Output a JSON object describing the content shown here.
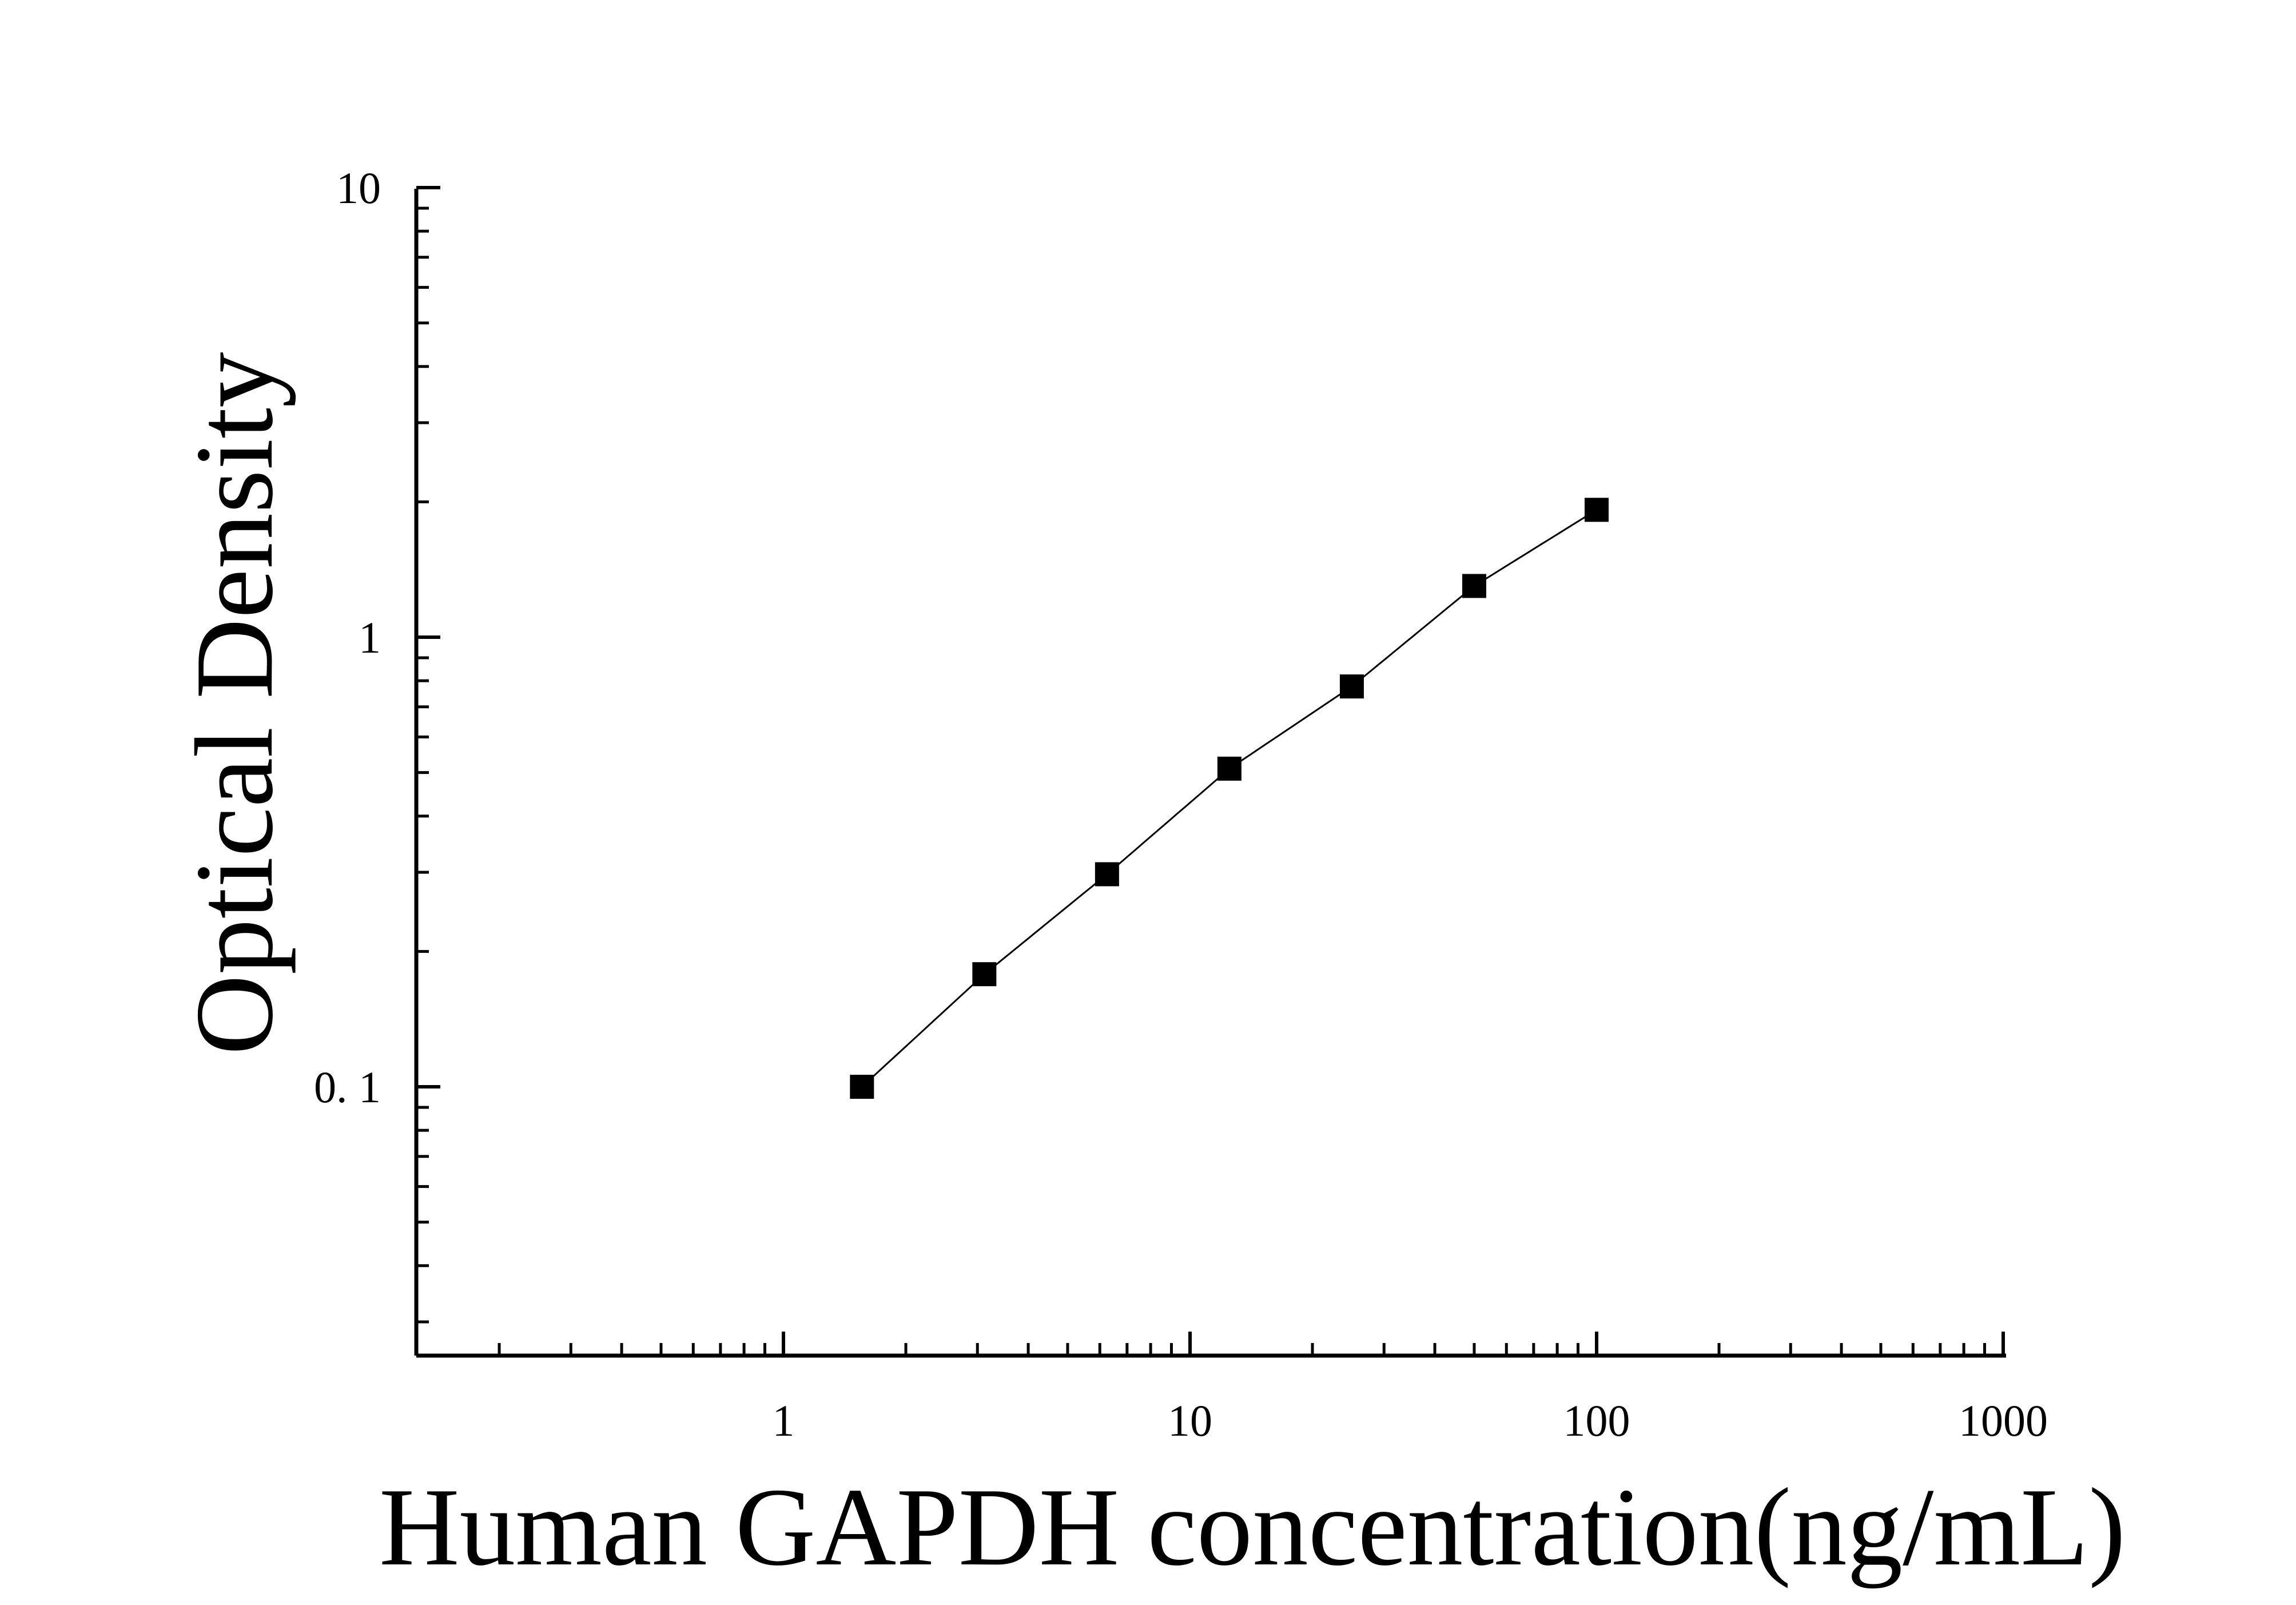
{
  "chart_data": {
    "type": "scatter",
    "title": "",
    "xlabel": "Human GAPDH concentration(ng/mL)",
    "ylabel": "Optical Density",
    "x_scale": "log",
    "y_scale": "log",
    "xlim": [
      0.12,
      1000
    ],
    "ylim": [
      0.025,
      10
    ],
    "x_ticks": [
      1,
      10,
      100,
      1000
    ],
    "x_tick_labels": [
      "1",
      "10",
      "100",
      "1000"
    ],
    "y_ticks": [
      0.1,
      1,
      10
    ],
    "y_tick_labels": [
      "0. 1",
      "1",
      "10"
    ],
    "grid": false,
    "legend": "none",
    "series": [
      {
        "marker": "square",
        "color": "#000000",
        "x": [
          1.56,
          3.12,
          6.25,
          12.5,
          25,
          50,
          100
        ],
        "y": [
          0.1,
          0.178,
          0.297,
          0.51,
          0.777,
          1.3,
          1.92
        ]
      }
    ],
    "fit_curve": {
      "color": "#000000",
      "x_range": [
        1.5,
        100
      ]
    }
  }
}
